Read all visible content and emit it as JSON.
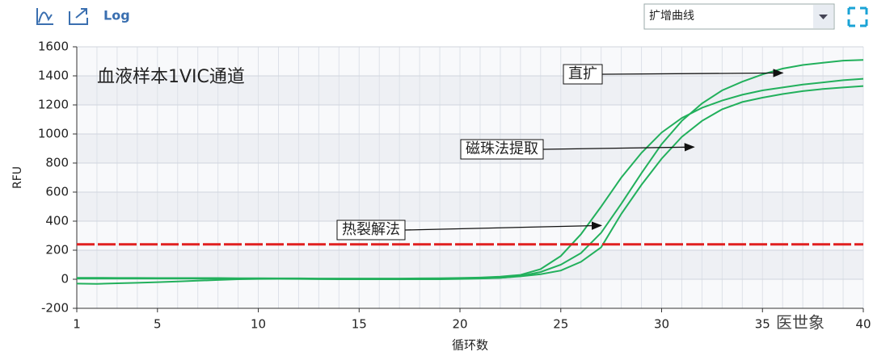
{
  "toolbar": {
    "log_button": "Log",
    "dropdown": "扩增曲线"
  },
  "watermark": "医世象",
  "chart_data": {
    "type": "line",
    "title": "血液样本1VIC通道",
    "x_label": "循环数",
    "y_label": "RFU",
    "x": [
      1,
      2,
      3,
      4,
      5,
      6,
      7,
      8,
      9,
      10,
      11,
      12,
      13,
      14,
      15,
      16,
      17,
      18,
      19,
      20,
      21,
      22,
      23,
      24,
      25,
      26,
      27,
      28,
      29,
      30,
      31,
      32,
      33,
      34,
      35,
      36,
      37,
      38,
      39,
      40
    ],
    "series": [
      {
        "color": "#22b05c",
        "values": [
          10,
          10,
          9,
          9,
          8,
          8,
          8,
          8,
          7,
          7,
          6,
          6,
          5,
          5,
          5,
          5,
          5,
          6,
          7,
          9,
          12,
          18,
          30,
          70,
          160,
          310,
          500,
          700,
          870,
          1010,
          1110,
          1180,
          1230,
          1270,
          1300,
          1320,
          1340,
          1355,
          1370,
          1380
        ]
      },
      {
        "color": "#22b05c",
        "values": [
          5,
          5,
          5,
          5,
          5,
          5,
          5,
          5,
          5,
          5,
          4,
          4,
          3,
          3,
          3,
          3,
          3,
          3,
          3,
          4,
          6,
          10,
          22,
          50,
          100,
          180,
          320,
          520,
          730,
          930,
          1090,
          1210,
          1300,
          1360,
          1410,
          1450,
          1475,
          1490,
          1505,
          1510
        ]
      },
      {
        "color": "#22b05c",
        "values": [
          -30,
          -32,
          -28,
          -24,
          -20,
          -15,
          -10,
          -5,
          0,
          2,
          3,
          2,
          1,
          0,
          0,
          0,
          0,
          0,
          0,
          2,
          5,
          10,
          20,
          35,
          60,
          120,
          220,
          450,
          650,
          830,
          980,
          1090,
          1170,
          1220,
          1250,
          1275,
          1295,
          1310,
          1320,
          1330
        ]
      }
    ],
    "threshold": 240,
    "threshold_color": "#e02020",
    "annotations": [
      {
        "text": "直扩",
        "x": 36,
        "y": 1420
      },
      {
        "text": "磁珠法提取",
        "x": 31.6,
        "y": 910
      },
      {
        "text": "热裂解法",
        "x": 27,
        "y": 370
      }
    ],
    "xlim": [
      1,
      40
    ],
    "xticks": [
      1,
      5,
      10,
      15,
      20,
      25,
      30,
      35,
      40
    ],
    "ylim": [
      -200,
      1600
    ],
    "yticks": [
      -200,
      0,
      200,
      400,
      600,
      800,
      1000,
      1200,
      1400,
      1600
    ],
    "grid": true
  }
}
